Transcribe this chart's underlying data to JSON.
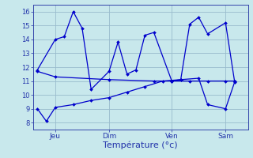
{
  "background_color": "#c8e8ec",
  "grid_color": "#99bbcc",
  "line_color": "#0000cc",
  "xlabel": "Température (°c)",
  "xlabel_fontsize": 8,
  "tick_label_color": "#2233aa",
  "ylim": [
    7.5,
    16.5
  ],
  "yticks": [
    8,
    9,
    10,
    11,
    12,
    13,
    14,
    15,
    16
  ],
  "day_labels": [
    "Jeu",
    "Dim",
    "Ven",
    "Sam"
  ],
  "day_positions": [
    2,
    8,
    15,
    21
  ],
  "xlim": [
    -0.5,
    23.5
  ],
  "series1_x": [
    0,
    2,
    3,
    4,
    5,
    6,
    8,
    9,
    10,
    11,
    12,
    13,
    15,
    16,
    17,
    18,
    19,
    21,
    22
  ],
  "series1_y": [
    11.8,
    14.0,
    14.2,
    16.0,
    14.8,
    10.4,
    11.7,
    13.8,
    11.5,
    11.8,
    14.3,
    14.5,
    11.0,
    11.1,
    15.1,
    15.6,
    14.4,
    15.2,
    11.0
  ],
  "series2_x": [
    0,
    2,
    8,
    13,
    15,
    17,
    19,
    21,
    22
  ],
  "series2_y": [
    11.7,
    11.3,
    11.1,
    11.0,
    11.0,
    11.0,
    11.0,
    11.0,
    11.0
  ],
  "series3_x": [
    0,
    1,
    2,
    4,
    6,
    8,
    10,
    12,
    14,
    16,
    18,
    19,
    21,
    22
  ],
  "series3_y": [
    9.0,
    8.1,
    9.1,
    9.3,
    9.6,
    9.8,
    10.2,
    10.6,
    11.0,
    11.1,
    11.2,
    9.3,
    9.0,
    10.9
  ]
}
